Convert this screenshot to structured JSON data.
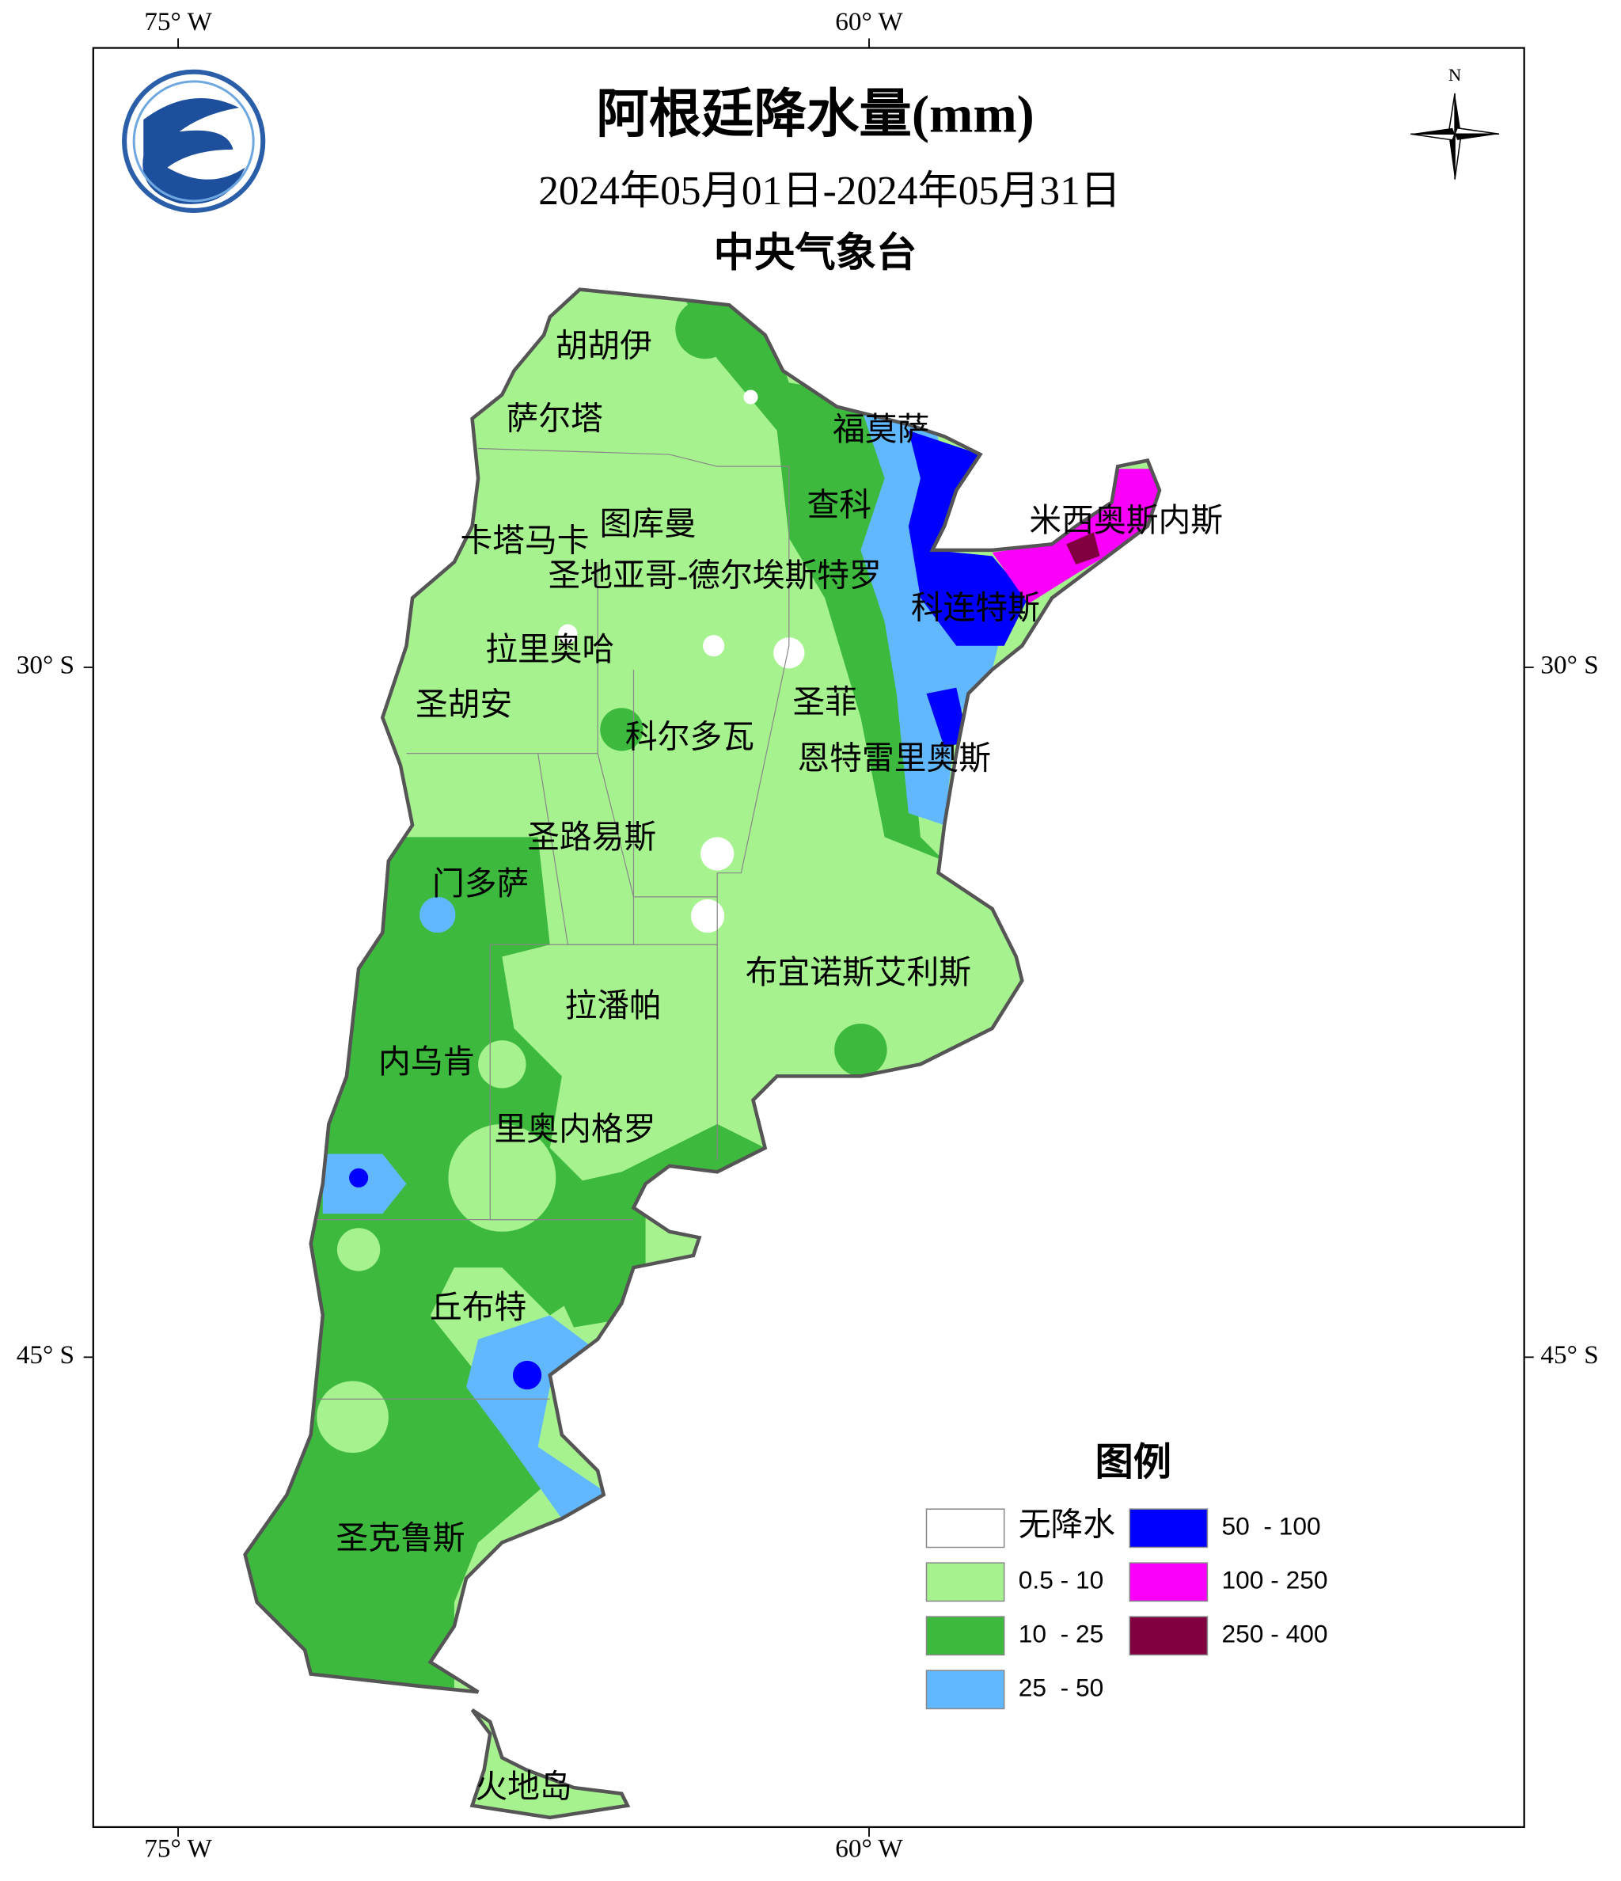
{
  "title": "阿根廷降水量(mm)",
  "subtitle": "2024年05月01日-2024年05月31日",
  "agency": "中央气象台",
  "north": "N",
  "longitude_labels": [
    "75° W",
    "60° W"
  ],
  "latitude_labels": [
    "30° S",
    "45° S"
  ],
  "provinces": [
    "胡胡伊",
    "萨尔塔",
    "福莫萨",
    "查科",
    "米西奥斯内斯",
    "图库曼",
    "卡塔马卡",
    "圣地亚哥-德尔埃斯特罗",
    "科连特斯",
    "拉里奥哈",
    "圣胡安",
    "圣菲",
    "科尔多瓦",
    "恩特雷里奥斯",
    "圣路易斯",
    "门多萨",
    "布宜诺斯艾利斯",
    "拉潘帕",
    "内乌肯",
    "里奥内格罗",
    "丘布特",
    "圣克鲁斯",
    "火地岛"
  ],
  "legend": {
    "title": "图例",
    "items": [
      {
        "name": "无降水",
        "color": "#ffffff"
      },
      {
        "name": "0.5 - 10",
        "color": "#a6f28f"
      },
      {
        "name": "10  - 25",
        "color": "#3dba3d"
      },
      {
        "name": "25  - 50",
        "color": "#61b8ff"
      },
      {
        "name": "50  - 100",
        "color": "#0000fe"
      },
      {
        "name": "100 - 250",
        "color": "#fa00fa"
      },
      {
        "name": "250 - 400",
        "color": "#810040"
      }
    ]
  }
}
